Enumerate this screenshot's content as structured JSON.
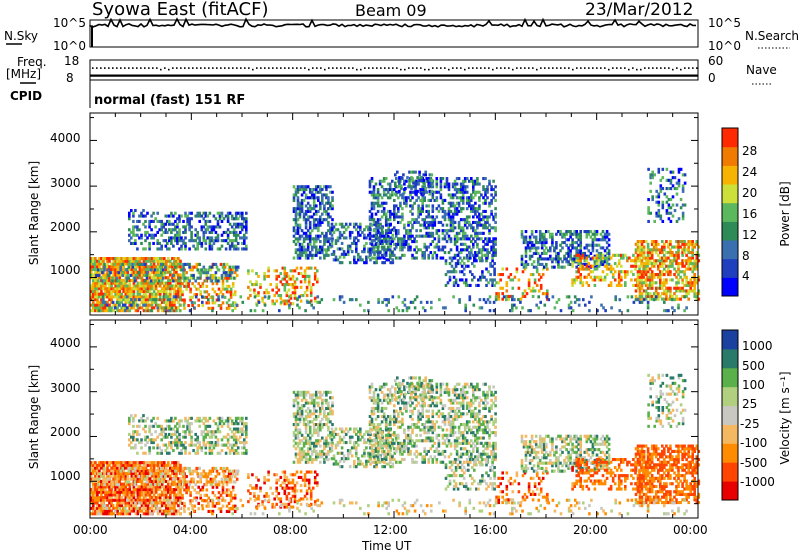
{
  "header": {
    "station": "Syowa East (fitACF)",
    "beam": "Beam 09",
    "date": "23/Mar/2012"
  },
  "left_labels": {
    "nsky": "N.Sky",
    "freq": "Freq.",
    "freq_unit": "[MHz]",
    "cpid": "CPID"
  },
  "right_labels": {
    "nsearch": "N.Search",
    "nave": "Nave"
  },
  "cpid_text": "normal (fast) 151 RF",
  "colors": {
    "power": [
      "#0000ff",
      "#1f3fbf",
      "#3a6fb0",
      "#2e8b57",
      "#5cb85c",
      "#cde03a",
      "#f6b300",
      "#f07b00",
      "#ff2a00"
    ],
    "velocity": [
      "#e80000",
      "#ff4500",
      "#ff8c00",
      "#f4b860",
      "#c8c8c0",
      "#b0d080",
      "#5ab04a",
      "#2a7a6a",
      "#1a40a0"
    ]
  },
  "chart_data": [
    {
      "type": "line",
      "name": "noise",
      "ylabel_left": "N.Sky",
      "ylabel_right": "N.Search",
      "left_ticks": [
        "10^5",
        "10^0"
      ],
      "right_ticks": [
        "10^5",
        "10^0"
      ],
      "level_fraction": 0.8
    },
    {
      "type": "scatter",
      "name": "frequency-nave",
      "ylabel_left": "Freq. [MHz]",
      "ylabel_right": "Nave",
      "left_ticks": [
        18,
        8
      ],
      "right_ticks": [
        60,
        0
      ],
      "freq_mhz": 10.2,
      "nave": 38
    },
    {
      "type": "heatmap",
      "name": "power",
      "ylabel": "Slant Range [km]",
      "yticks": [
        1000,
        2000,
        3000,
        4000
      ],
      "ylim": [
        180,
        4600
      ],
      "colorbar_label": "Power [dB]",
      "colorbar_ticks": [
        4,
        8,
        12,
        16,
        20,
        24,
        28
      ],
      "xlim_hours": [
        0,
        24
      ]
    },
    {
      "type": "heatmap",
      "name": "velocity",
      "ylabel": "Slant Range [km]",
      "yticks": [
        1000,
        2000,
        3000,
        4000
      ],
      "ylim": [
        180,
        4600
      ],
      "colorbar_label": "Velocity [m s⁻¹]",
      "colorbar_ticks": [
        "-1000",
        "-500",
        "-100",
        "-25",
        "25",
        "100",
        "500",
        "1000"
      ],
      "xlim_hours": [
        0,
        24
      ]
    }
  ],
  "xaxis": {
    "ticks": [
      "00:00",
      "04:00",
      "08:00",
      "12:00",
      "16:00",
      "20:00",
      "00:00"
    ],
    "label": "Time UT"
  }
}
